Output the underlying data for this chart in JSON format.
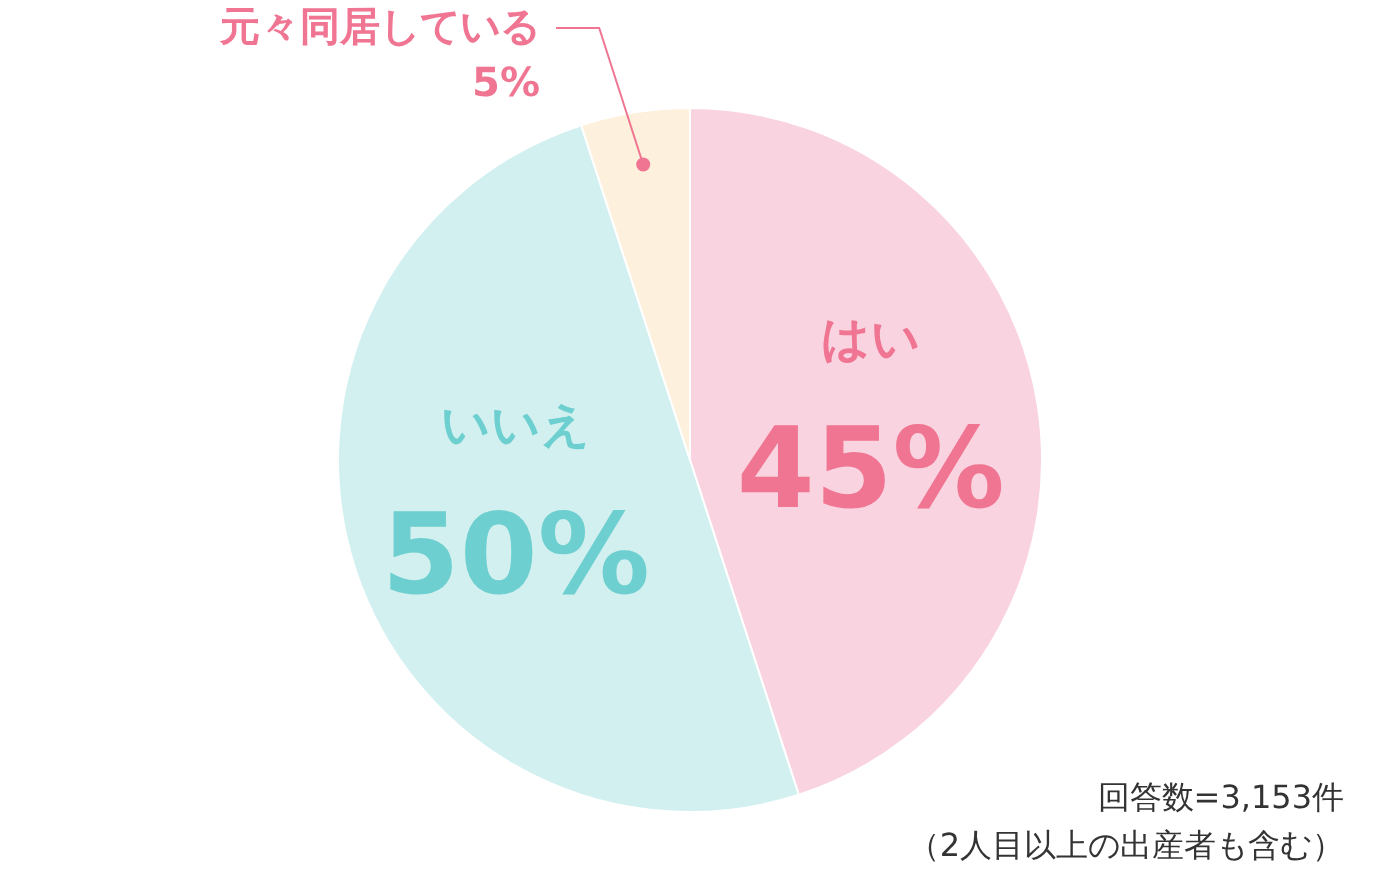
{
  "chart_data": {
    "type": "pie",
    "categories": [
      "はい",
      "いいえ",
      "元々同居している"
    ],
    "values": [
      45,
      50,
      5
    ],
    "value_labels": [
      "45%",
      "50%",
      "5%"
    ],
    "colors": [
      "#f9d3df",
      "#d3f0f0",
      "#fdf0dc"
    ],
    "annotations": [
      "回答数=3,153件",
      "（2人目以上の出産者も含む）"
    ],
    "legend": false
  }
}
